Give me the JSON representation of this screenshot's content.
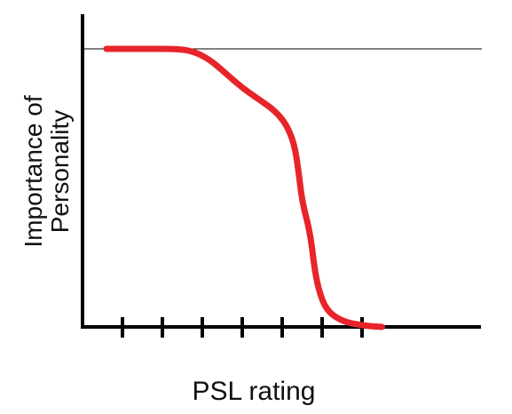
{
  "chart_data": {
    "type": "line",
    "title": "",
    "xlabel": "PSL rating",
    "ylabel_lines": [
      "Importance of",
      "Personality"
    ],
    "x_ticks": [
      1,
      2,
      3,
      4,
      5,
      6,
      7
    ],
    "x_tick_labels": [],
    "xlim": [
      0,
      10
    ],
    "ylim": [
      0,
      1
    ],
    "reference_line": {
      "y": 1.0
    },
    "grid": false,
    "legend": "none",
    "series": [
      {
        "color": "#e8242b",
        "points": [
          [
            0.6,
            1.0
          ],
          [
            1.0,
            1.0
          ],
          [
            1.6,
            1.0
          ],
          [
            2.4,
            1.0
          ],
          [
            2.8,
            0.99
          ],
          [
            3.2,
            0.96
          ],
          [
            3.6,
            0.91
          ],
          [
            4.0,
            0.86
          ],
          [
            4.4,
            0.82
          ],
          [
            4.8,
            0.78
          ],
          [
            5.1,
            0.73
          ],
          [
            5.3,
            0.66
          ],
          [
            5.4,
            0.57
          ],
          [
            5.5,
            0.45
          ],
          [
            5.7,
            0.34
          ],
          [
            5.8,
            0.22
          ],
          [
            5.9,
            0.14
          ],
          [
            6.1,
            0.06
          ],
          [
            6.5,
            0.02
          ],
          [
            7.0,
            0.005
          ],
          [
            7.5,
            0.0
          ]
        ]
      }
    ],
    "colors": {
      "axis": "#000000",
      "reference": "#000000",
      "curve": "#e8242b"
    }
  }
}
